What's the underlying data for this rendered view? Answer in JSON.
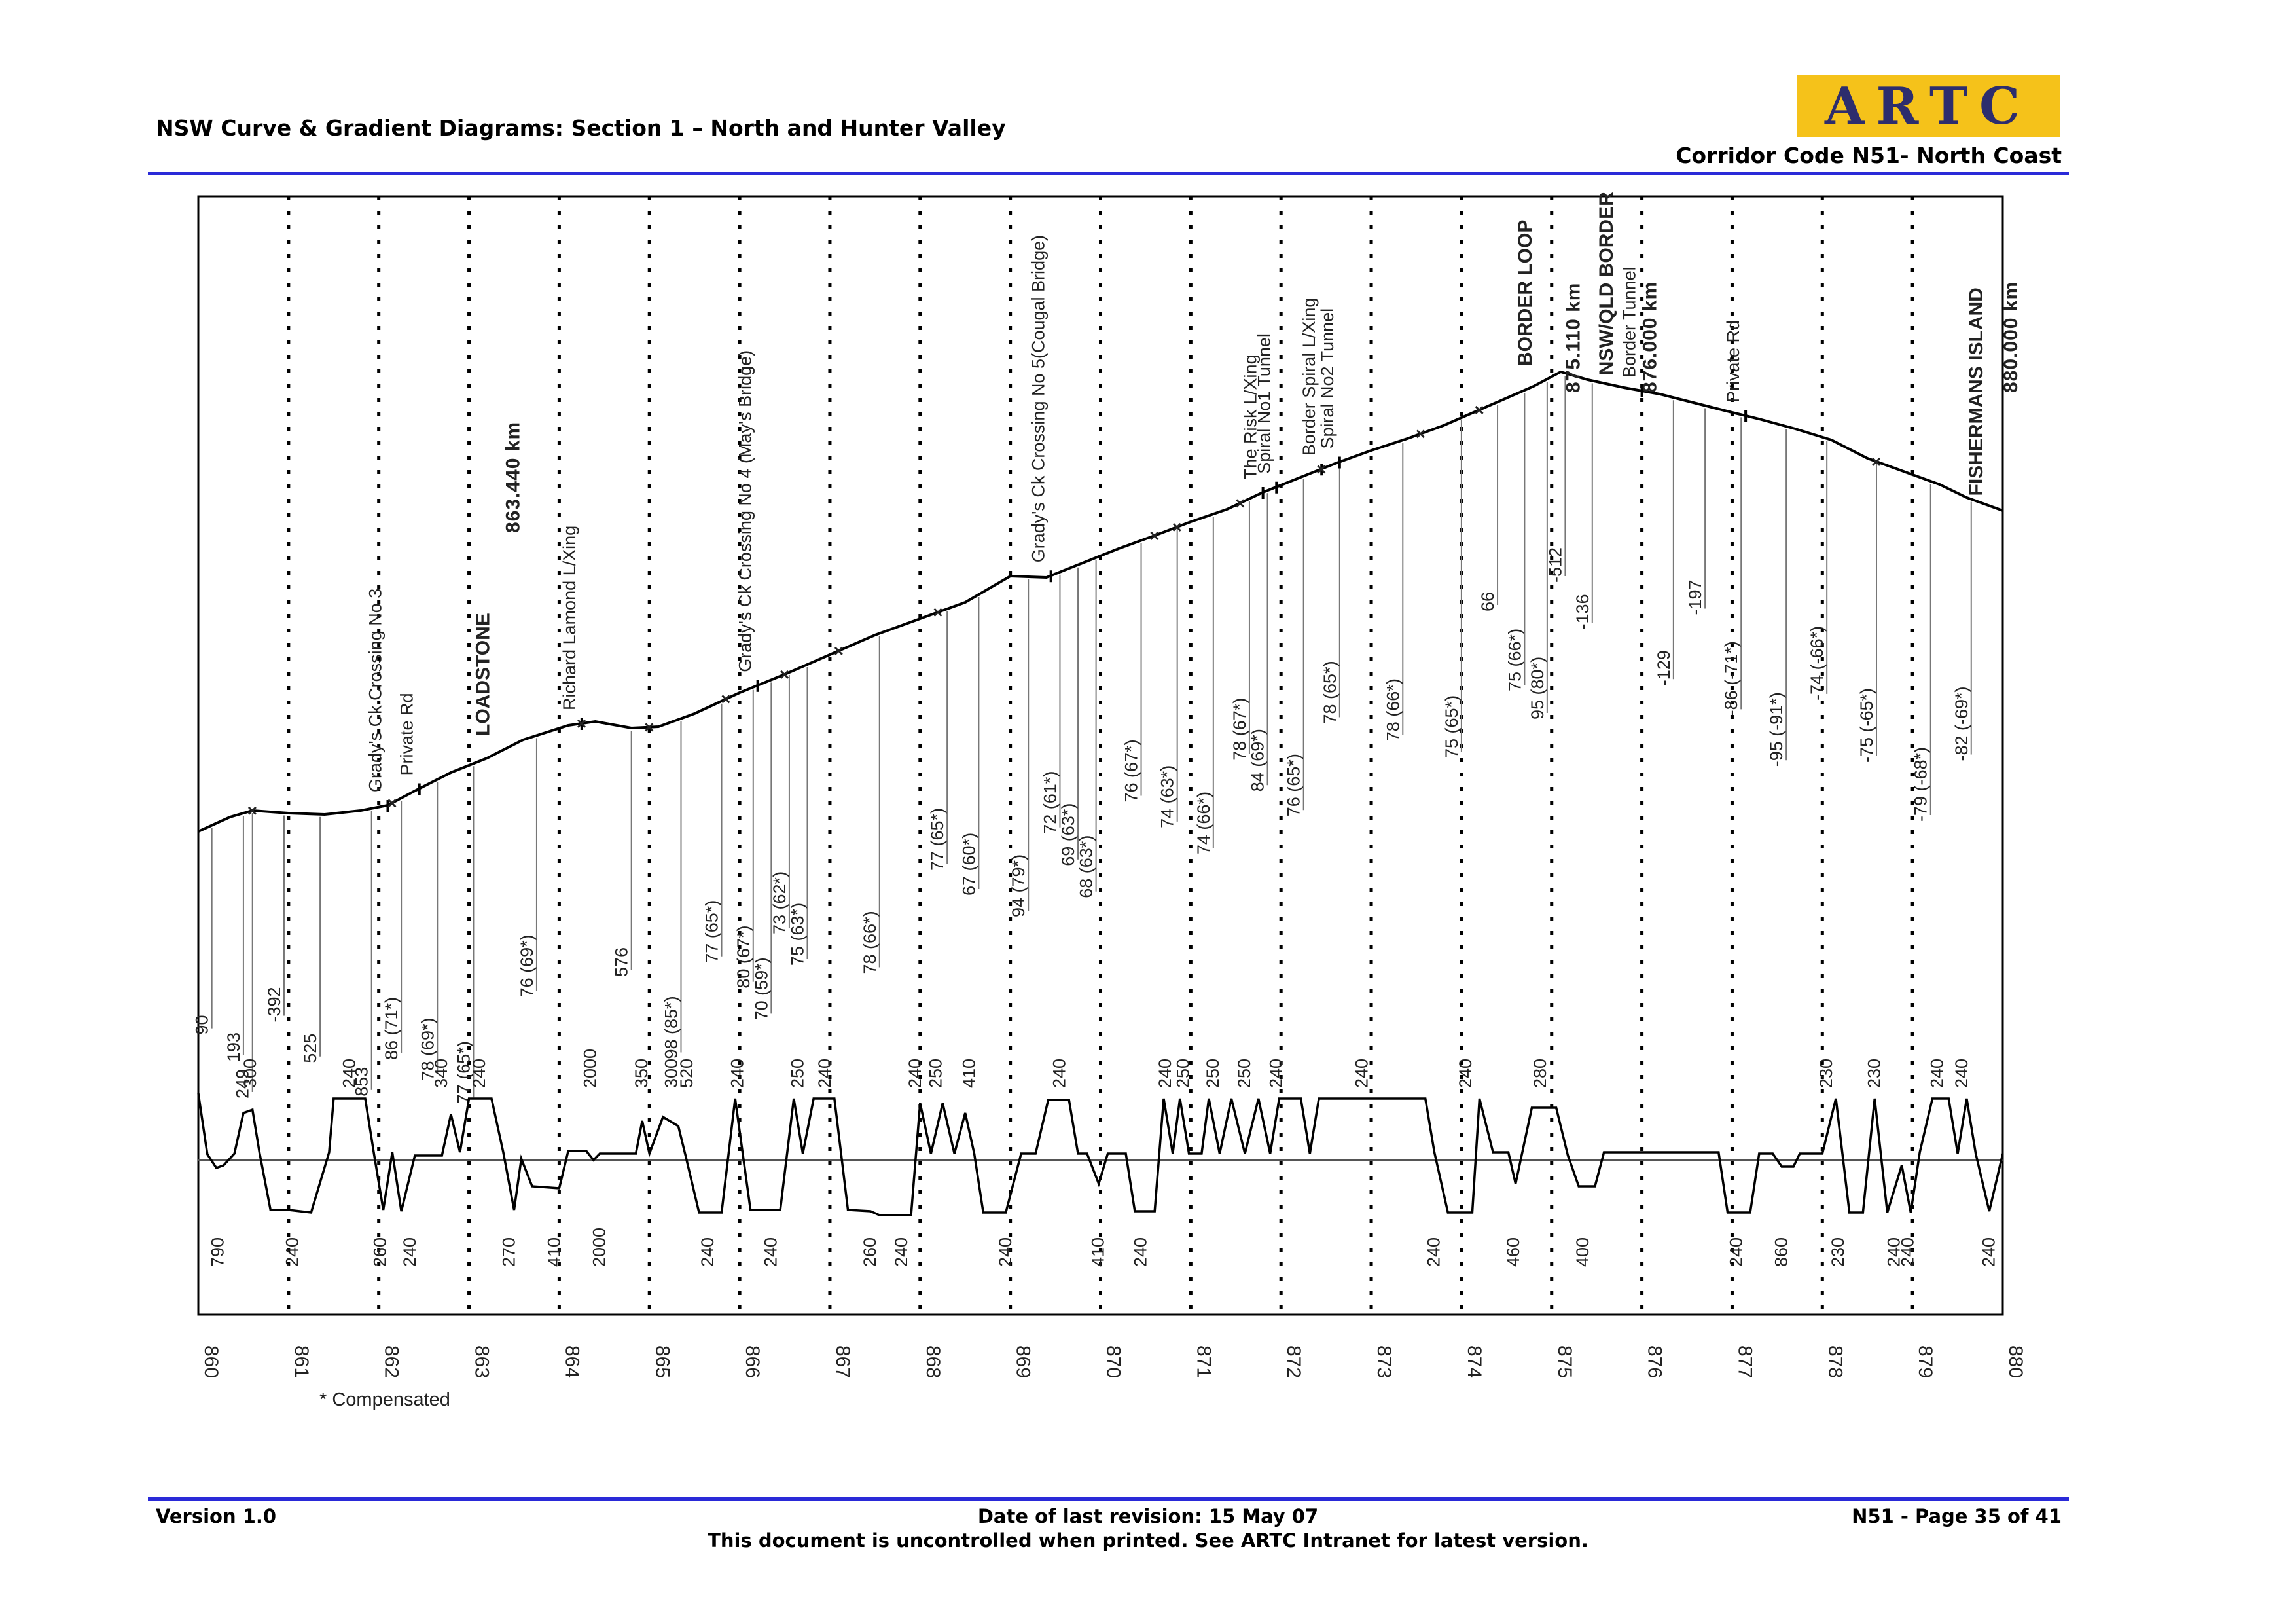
{
  "header": {
    "title": "NSW Curve & Gradient Diagrams: Section 1 – North and Hunter Valley",
    "logo_text": "ARTC",
    "corridor": "Corridor Code N51- North Coast"
  },
  "footer": {
    "version": "Version 1.0",
    "revision": "Date of last revision: 15 May 07",
    "notice": "This document is uncontrolled when printed. See ARTC Intranet for latest version.",
    "page": "N51 - Page 35 of 41"
  },
  "colors": {
    "rule": "#2a2ad8",
    "logo_bg": "#f5c21a",
    "logo_fg": "#2d2d6d"
  },
  "diagram": {
    "compensated_note": "* Compensated",
    "km_ticks": [
      "860",
      "861",
      "862",
      "863",
      "864",
      "865",
      "866",
      "867",
      "868",
      "869",
      "870",
      "871",
      "872",
      "873",
      "874",
      "875",
      "876",
      "877",
      "878",
      "879",
      "880"
    ],
    "profile_top": [
      [
        860,
        1270
      ],
      [
        860.35,
        1248
      ],
      [
        860.6,
        1238
      ],
      [
        861,
        1242
      ],
      [
        861.4,
        1244
      ],
      [
        861.8,
        1238
      ],
      [
        862.1,
        1230
      ],
      [
        862.4,
        1208
      ],
      [
        862.8,
        1180
      ],
      [
        863.2,
        1158
      ],
      [
        863.6,
        1130
      ],
      [
        864.1,
        1108
      ],
      [
        864.4,
        1102
      ],
      [
        864.8,
        1112
      ],
      [
        865.1,
        1110
      ],
      [
        865.5,
        1090
      ],
      [
        866,
        1058
      ],
      [
        866.5,
        1030
      ],
      [
        867,
        1000
      ],
      [
        867.5,
        970
      ],
      [
        868,
        945
      ],
      [
        868.5,
        920
      ],
      [
        869,
        880
      ],
      [
        869.4,
        882
      ],
      [
        869.8,
        860
      ],
      [
        870.2,
        838
      ],
      [
        870.6,
        818
      ],
      [
        871,
        797
      ],
      [
        871.4,
        778
      ],
      [
        871.8,
        752
      ],
      [
        872.2,
        730
      ],
      [
        872.6,
        708
      ],
      [
        873,
        688
      ],
      [
        873.4,
        670
      ],
      [
        873.8,
        650
      ],
      [
        874.1,
        632
      ],
      [
        874.5,
        608
      ],
      [
        874.8,
        590
      ],
      [
        875.1,
        568
      ],
      [
        875.4,
        580
      ],
      [
        875.8,
        592
      ],
      [
        876.2,
        602
      ],
      [
        876.6,
        616
      ],
      [
        877,
        630
      ],
      [
        877.3,
        640
      ],
      [
        877.7,
        655
      ],
      [
        878.1,
        672
      ],
      [
        878.5,
        700
      ],
      [
        878.9,
        720
      ],
      [
        879.3,
        740
      ],
      [
        879.6,
        760
      ],
      [
        880,
        780
      ]
    ],
    "gradient_profile": [
      [
        860,
        1670
      ],
      [
        860.1,
        1763
      ],
      [
        860.2,
        1784
      ],
      [
        860.28,
        1780
      ],
      [
        860.4,
        1762
      ],
      [
        860.5,
        1700
      ],
      [
        860.6,
        1695
      ],
      [
        860.68,
        1762
      ],
      [
        860.8,
        1848
      ],
      [
        861,
        1848
      ],
      [
        861.25,
        1852
      ],
      [
        861.45,
        1760
      ],
      [
        861.5,
        1678
      ],
      [
        861.85,
        1678
      ],
      [
        861.95,
        1765
      ],
      [
        862.05,
        1848
      ],
      [
        862.15,
        1760
      ],
      [
        862.25,
        1850
      ],
      [
        862.4,
        1765
      ],
      [
        862.7,
        1765
      ],
      [
        862.8,
        1702
      ],
      [
        862.9,
        1760
      ],
      [
        863,
        1678
      ],
      [
        863.25,
        1678
      ],
      [
        863.38,
        1760
      ],
      [
        863.5,
        1848
      ],
      [
        863.58,
        1770
      ],
      [
        863.7,
        1812
      ],
      [
        864,
        1815
      ],
      [
        864.1,
        1758
      ],
      [
        864.3,
        1758
      ],
      [
        864.38,
        1772
      ],
      [
        864.45,
        1762
      ],
      [
        864.85,
        1762
      ],
      [
        864.92,
        1712
      ],
      [
        865.0,
        1762
      ],
      [
        865.15,
        1706
      ],
      [
        865.32,
        1720
      ],
      [
        865.4,
        1765
      ],
      [
        865.55,
        1852
      ],
      [
        865.8,
        1852
      ],
      [
        865.95,
        1678
      ],
      [
        866.12,
        1848
      ],
      [
        866.45,
        1848
      ],
      [
        866.6,
        1678
      ],
      [
        866.7,
        1762
      ],
      [
        866.82,
        1678
      ],
      [
        867.05,
        1678
      ],
      [
        867.2,
        1848
      ],
      [
        867.45,
        1850
      ],
      [
        867.55,
        1856
      ],
      [
        867.9,
        1856
      ],
      [
        868.0,
        1685
      ],
      [
        868.12,
        1762
      ],
      [
        868.25,
        1685
      ],
      [
        868.38,
        1762
      ],
      [
        868.5,
        1700
      ],
      [
        868.6,
        1762
      ],
      [
        868.7,
        1852
      ],
      [
        868.95,
        1852
      ],
      [
        869.12,
        1762
      ],
      [
        869.28,
        1762
      ],
      [
        869.42,
        1680
      ],
      [
        869.65,
        1680
      ],
      [
        869.75,
        1762
      ],
      [
        869.85,
        1762
      ],
      [
        869.98,
        1808
      ],
      [
        870.08,
        1762
      ],
      [
        870.28,
        1762
      ],
      [
        870.38,
        1850
      ],
      [
        870.6,
        1850
      ],
      [
        870.7,
        1678
      ],
      [
        870.8,
        1762
      ],
      [
        870.88,
        1678
      ],
      [
        870.98,
        1762
      ],
      [
        871.12,
        1762
      ],
      [
        871.2,
        1678
      ],
      [
        871.32,
        1762
      ],
      [
        871.45,
        1678
      ],
      [
        871.6,
        1762
      ],
      [
        871.75,
        1678
      ],
      [
        871.88,
        1762
      ],
      [
        871.98,
        1678
      ],
      [
        872.22,
        1678
      ],
      [
        872.32,
        1762
      ],
      [
        872.42,
        1678
      ],
      [
        873.6,
        1678
      ],
      [
        873.7,
        1760
      ],
      [
        873.85,
        1852
      ],
      [
        874.12,
        1852
      ],
      [
        874.2,
        1678
      ],
      [
        874.35,
        1760
      ],
      [
        874.52,
        1760
      ],
      [
        874.6,
        1808
      ],
      [
        874.78,
        1692
      ],
      [
        875.05,
        1692
      ],
      [
        875.18,
        1765
      ],
      [
        875.3,
        1812
      ],
      [
        875.48,
        1812
      ],
      [
        875.58,
        1760
      ],
      [
        876.85,
        1760
      ],
      [
        876.95,
        1852
      ],
      [
        877.2,
        1852
      ],
      [
        877.3,
        1762
      ],
      [
        877.45,
        1762
      ],
      [
        877.55,
        1782
      ],
      [
        877.68,
        1782
      ],
      [
        877.75,
        1762
      ],
      [
        878.0,
        1762
      ],
      [
        878.15,
        1678
      ],
      [
        878.3,
        1852
      ],
      [
        878.45,
        1852
      ],
      [
        878.58,
        1678
      ],
      [
        878.72,
        1852
      ],
      [
        878.88,
        1780
      ],
      [
        878.98,
        1852
      ],
      [
        879.08,
        1760
      ],
      [
        879.22,
        1678
      ],
      [
        879.4,
        1678
      ],
      [
        879.5,
        1762
      ],
      [
        879.6,
        1678
      ],
      [
        879.7,
        1762
      ],
      [
        879.85,
        1850
      ],
      [
        880,
        1762
      ]
    ],
    "curve_labels": [
      {
        "text": "90",
        "km": 860.15
      },
      {
        "text": "193",
        "km": 860.5
      },
      {
        "text": "249",
        "km": 860.6
      },
      {
        "text": "-392",
        "km": 860.95
      },
      {
        "text": "525",
        "km": 861.35
      },
      {
        "text": "853",
        "km": 861.92
      },
      {
        "text": "86 (71*)",
        "km": 862.25
      },
      {
        "text": "78 (69*)",
        "km": 862.65
      },
      {
        "text": "77 (65*)",
        "km": 863.05
      },
      {
        "text": "76 (69*)",
        "km": 863.75
      },
      {
        "text": "576",
        "km": 864.8
      },
      {
        "text": "98 (85*)",
        "km": 865.35
      },
      {
        "text": "77 (65*)",
        "km": 865.8
      },
      {
        "text": "80 (67*)",
        "km": 866.15
      },
      {
        "text": "70 (59*)",
        "km": 866.35
      },
      {
        "text": "73 (62*)",
        "km": 866.55
      },
      {
        "text": "75 (63*)",
        "km": 866.75
      },
      {
        "text": "78 (66*)",
        "km": 867.55
      },
      {
        "text": "77 (65*)",
        "km": 868.3
      },
      {
        "text": "67 (60*)",
        "km": 868.65
      },
      {
        "text": "94 (79*)",
        "km": 869.2
      },
      {
        "text": "72 (61*)",
        "km": 869.55
      },
      {
        "text": "69 (63*)",
        "km": 869.75
      },
      {
        "text": "68 (63*)",
        "km": 869.95
      },
      {
        "text": "76 (67*)",
        "km": 870.45
      },
      {
        "text": "74 (63*)",
        "km": 870.85
      },
      {
        "text": "74 (66*)",
        "km": 871.25
      },
      {
        "text": "78 (67*)",
        "km": 871.65
      },
      {
        "text": "84 (69*)",
        "km": 871.85
      },
      {
        "text": "76 (65*)",
        "km": 872.25
      },
      {
        "text": "78 (65*)",
        "km": 872.65
      },
      {
        "text": "78 (66*)",
        "km": 873.35
      },
      {
        "text": "75 (65*)",
        "km": 874.0
      },
      {
        "text": "66",
        "km": 874.4
      },
      {
        "text": "75 (66*)",
        "km": 874.7
      },
      {
        "text": "95 (80*)",
        "km": 874.95
      },
      {
        "text": "-512",
        "km": 875.15
      },
      {
        "text": "-136",
        "km": 875.45
      },
      {
        "text": "-129",
        "km": 876.35
      },
      {
        "text": "-197",
        "km": 876.7
      },
      {
        "text": "-86 (-71*)",
        "km": 877.1
      },
      {
        "text": "-95 (-91*)",
        "km": 877.6
      },
      {
        "text": "-74 (-66*)",
        "km": 878.05
      },
      {
        "text": "-75 (-65*)",
        "km": 878.6
      },
      {
        "text": "-79 (-68*)",
        "km": 879.2
      },
      {
        "text": "-82 (-69*)",
        "km": 879.65
      }
    ],
    "feature_labels": [
      {
        "text": "Grady's Ck Crossing No 3",
        "km": 862.1
      },
      {
        "text": "Private Rd",
        "km": 862.45
      },
      {
        "text": "Richard Lamond L/Xing",
        "km": 864.25
      },
      {
        "text": "Grady's Ck Crossing No 4 (May's Bridge)",
        "km": 866.2
      },
      {
        "text": "Grady's Ck Crossing No 5(Cougal Bridge)",
        "km": 869.45
      },
      {
        "text": "The Risk L/Xing",
        "km": 871.8
      },
      {
        "text": "Spiral No1 Tunnel",
        "km": 871.95
      },
      {
        "text": "Border Spiral L/Xing",
        "km": 872.45
      },
      {
        "text": "Spiral No2 Tunnel",
        "km": 872.65
      },
      {
        "text": "Border Tunnel",
        "km": 876.0
      },
      {
        "text": "Private Rd",
        "km": 877.15
      }
    ],
    "station_labels": [
      {
        "text": "LOADSTONE",
        "km": 863.4
      },
      {
        "text": "863.440 km",
        "km": 863.4
      },
      {
        "text": "BORDER LOOP",
        "km": 874.95
      },
      {
        "text": "875.110 km",
        "km": 875.15
      },
      {
        "text": "NSW/QLD BORDER",
        "km": 875.85
      },
      {
        "text": "876.000 km",
        "km": 876.0
      },
      {
        "text": "FISHERMANS ISLAND",
        "km": 879.95
      },
      {
        "text": "880.000 km",
        "km": 880.0
      }
    ],
    "upper_grade_labels": [
      {
        "text": "300",
        "km": 860.58
      },
      {
        "text": "240",
        "km": 861.68
      },
      {
        "text": "340",
        "km": 862.7
      },
      {
        "text": "240",
        "km": 863.12
      },
      {
        "text": "2000",
        "km": 864.35
      },
      {
        "text": "350",
        "km": 864.92
      },
      {
        "text": "300",
        "km": 865.25
      },
      {
        "text": "520",
        "km": 865.42
      },
      {
        "text": "240",
        "km": 865.98
      },
      {
        "text": "250",
        "km": 866.65
      },
      {
        "text": "240",
        "km": 866.95
      },
      {
        "text": "240",
        "km": 867.95
      },
      {
        "text": "250",
        "km": 868.18
      },
      {
        "text": "410",
        "km": 868.55
      },
      {
        "text": "240",
        "km": 869.55
      },
      {
        "text": "240",
        "km": 870.72
      },
      {
        "text": "250",
        "km": 870.92
      },
      {
        "text": "250",
        "km": 871.25
      },
      {
        "text": "250",
        "km": 871.6
      },
      {
        "text": "240",
        "km": 871.95
      },
      {
        "text": "240",
        "km": 872.9
      },
      {
        "text": "240",
        "km": 874.05
      },
      {
        "text": "280",
        "km": 874.88
      },
      {
        "text": "230",
        "km": 878.05
      },
      {
        "text": "230",
        "km": 878.58
      },
      {
        "text": "240",
        "km": 879.28
      },
      {
        "text": "240",
        "km": 879.55
      }
    ],
    "lower_grade_labels": [
      {
        "text": "790",
        "km": 860.22
      },
      {
        "text": "240",
        "km": 861.05
      },
      {
        "text": "260",
        "km": 862.02
      },
      {
        "text": "240",
        "km": 862.35
      },
      {
        "text": "270",
        "km": 863.45
      },
      {
        "text": "410",
        "km": 863.95
      },
      {
        "text": "2000",
        "km": 864.45
      },
      {
        "text": "240",
        "km": 865.65
      },
      {
        "text": "240",
        "km": 866.35
      },
      {
        "text": "260",
        "km": 867.45
      },
      {
        "text": "240",
        "km": 867.8
      },
      {
        "text": "240",
        "km": 868.95
      },
      {
        "text": "410",
        "km": 869.98
      },
      {
        "text": "240",
        "km": 870.45
      },
      {
        "text": "240",
        "km": 873.7
      },
      {
        "text": "460",
        "km": 874.58
      },
      {
        "text": "400",
        "km": 875.35
      },
      {
        "text": "240",
        "km": 877.05
      },
      {
        "text": "860",
        "km": 877.55
      },
      {
        "text": "230",
        "km": 878.18
      },
      {
        "text": "240",
        "km": 878.8
      },
      {
        "text": "240",
        "km": 878.95
      },
      {
        "text": "240",
        "km": 879.85
      }
    ]
  }
}
